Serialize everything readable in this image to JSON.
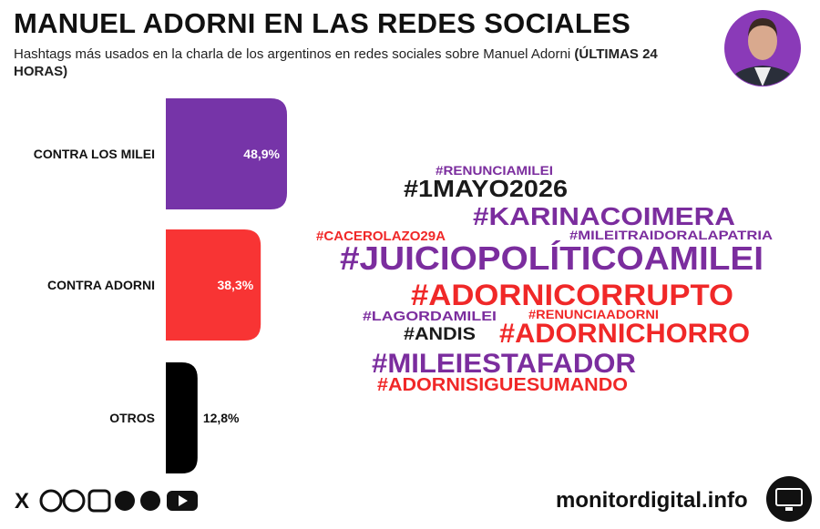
{
  "header": {
    "title": "MANUEL ADORNI EN LAS REDES SOCIALES",
    "subtitle": "Hashtags más usados en la charla de los argentinos en redes sociales sobre Manuel Adorni",
    "subtitle_bold": "(ÚLTIMAS 24 HORAS)"
  },
  "chart_data": {
    "type": "bar",
    "orientation": "horizontal",
    "categories": [
      "CONTRA LOS MILEI",
      "CONTRA ADORNI",
      "OTROS"
    ],
    "values": [
      48.9,
      38.3,
      12.8
    ],
    "value_labels": [
      "48,9%",
      "38,3%",
      "12,8%"
    ],
    "colors": [
      "#7634a8",
      "#f83434",
      "#000000"
    ]
  },
  "word_cloud": {
    "words": [
      {
        "text": "#RENUNCIAMILEI",
        "color": "#7b2d9e"
      },
      {
        "text": "#1MAYO2026",
        "color": "#1a1a1a"
      },
      {
        "text": "#KARINACOIMERA",
        "color": "#7b2d9e"
      },
      {
        "text": "#CACEROLAZO29A",
        "color": "#f02828"
      },
      {
        "text": "#MILEITRAIDORALAPATRIA",
        "color": "#7b2d9e"
      },
      {
        "text": "#JUICIOPOLÍTICOAMILEI",
        "color": "#7b2d9e"
      },
      {
        "text": "#ADORNICORRUPTO",
        "color": "#f02828"
      },
      {
        "text": "#LAGORDAMILEI",
        "color": "#7b2d9e"
      },
      {
        "text": "#RENUNCIAADORNI",
        "color": "#f02828"
      },
      {
        "text": "#ANDIS",
        "color": "#1a1a1a"
      },
      {
        "text": "#ADORNICHORRO",
        "color": "#f02828"
      },
      {
        "text": "#MILEIESTAFADOR",
        "color": "#7b2d9e"
      },
      {
        "text": "#ADORNISIGUESUMANDO",
        "color": "#f02828"
      }
    ]
  },
  "footer": {
    "site": "monitordigital.info"
  }
}
